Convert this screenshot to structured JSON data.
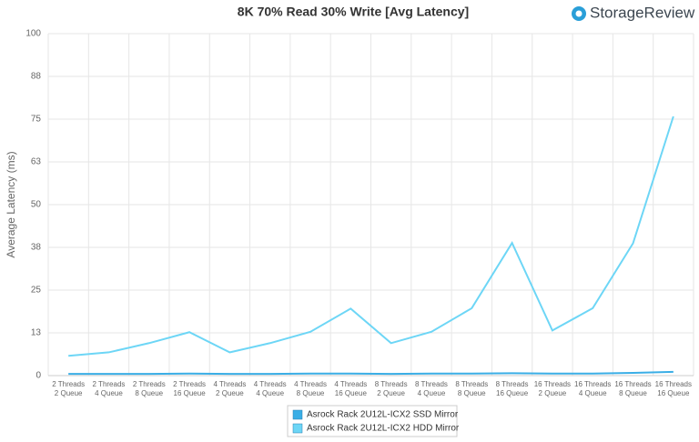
{
  "chart_data": {
    "type": "line",
    "title": "8K 70% Read 30% Write [Avg Latency]",
    "brand": "StorageReview",
    "y_label": "Average Latency (ms)",
    "categories": [
      [
        "2 Threads",
        "2 Queue"
      ],
      [
        "2 Threads",
        "4 Queue"
      ],
      [
        "2 Threads",
        "8 Queue"
      ],
      [
        "2 Threads",
        "16 Queue"
      ],
      [
        "4 Threads",
        "2 Queue"
      ],
      [
        "4 Threads",
        "4 Queue"
      ],
      [
        "4 Threads",
        "8 Queue"
      ],
      [
        "4 Threads",
        "16 Queue"
      ],
      [
        "8 Threads",
        "2 Queue"
      ],
      [
        "8 Threads",
        "4 Queue"
      ],
      [
        "8 Threads",
        "8 Queue"
      ],
      [
        "8 Threads",
        "16 Queue"
      ],
      [
        "16 Threads",
        "2 Queue"
      ],
      [
        "16 Threads",
        "4 Queue"
      ],
      [
        "16 Threads",
        "8 Queue"
      ],
      [
        "16 Threads",
        "16 Queue"
      ]
    ],
    "series": [
      {
        "name": "Asrock Rack 2U12L-ICX2 SSD Mirror",
        "color": "#3aaee6",
        "values": [
          0.5,
          0.5,
          0.5,
          0.6,
          0.5,
          0.5,
          0.6,
          0.6,
          0.5,
          0.6,
          0.6,
          0.7,
          0.6,
          0.6,
          0.8,
          1.1
        ]
      },
      {
        "name": "Asrock Rack 2U12L-ICX2 HDD Mirror",
        "color": "#6dd6f6",
        "values": [
          5.8,
          6.8,
          9.5,
          12.7,
          6.8,
          9.5,
          12.8,
          19.6,
          9.5,
          12.8,
          19.7,
          38.8,
          13.2,
          19.7,
          38.7,
          75.8
        ]
      }
    ],
    "ylim": [
      0,
      100
    ],
    "yticks": [
      0,
      {
        "value": 12.5,
        "label": "13"
      },
      25,
      {
        "value": 37.5,
        "label": "38"
      },
      50,
      {
        "value": 62.5,
        "label": "63"
      },
      75,
      {
        "value": 87.5,
        "label": "88"
      },
      100
    ],
    "grid": true
  }
}
